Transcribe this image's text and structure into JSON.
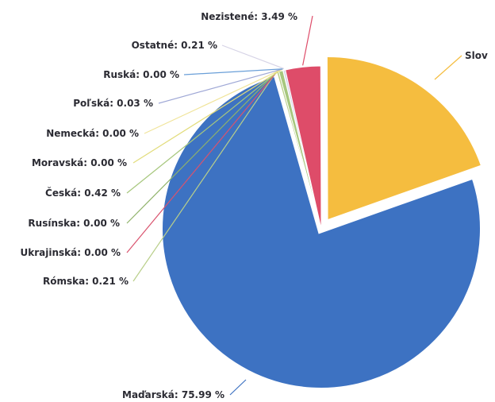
{
  "chart_data": {
    "type": "pie",
    "title": "",
    "legend": "none",
    "slices": [
      {
        "label": "Slov",
        "value": 19.65,
        "display": "Slov",
        "color": "#f5bd3f"
      },
      {
        "label": "Maďarská",
        "value": 75.99,
        "display": "Maďarská: 75.99 %",
        "color": "#3d72c2"
      },
      {
        "label": "Rómska",
        "value": 0.21,
        "display": "Rómska: 0.21 %",
        "color": "#b9cf8a"
      },
      {
        "label": "Ukrajinská",
        "value": 0.0,
        "display": "Ukrajinská: 0.00 %",
        "color": "#d9536e"
      },
      {
        "label": "Rusínska",
        "value": 0.0,
        "display": "Rusínska: 0.00 %",
        "color": "#8fb26a"
      },
      {
        "label": "Česká",
        "value": 0.42,
        "display": "Česká: 0.42 %",
        "color": "#a7c77e"
      },
      {
        "label": "Moravská",
        "value": 0.0,
        "display": "Moravská: 0.00 %",
        "color": "#e2dc7b"
      },
      {
        "label": "Nemecká",
        "value": 0.0,
        "display": "Nemecká: 0.00 %",
        "color": "#f0e49a"
      },
      {
        "label": "Poľská",
        "value": 0.03,
        "display": "Poľská: 0.03 %",
        "color": "#9fa8d6"
      },
      {
        "label": "Ruská",
        "value": 0.0,
        "display": "Ruská: 0.00 %",
        "color": "#6a9fd8"
      },
      {
        "label": "Ostatné",
        "value": 0.21,
        "display": "Ostatné: 0.21 %",
        "color": "#d6d3e6"
      },
      {
        "label": "Nezistené",
        "value": 3.49,
        "display": "Nezistené: 3.49 %",
        "color": "#de4c69"
      }
    ]
  }
}
